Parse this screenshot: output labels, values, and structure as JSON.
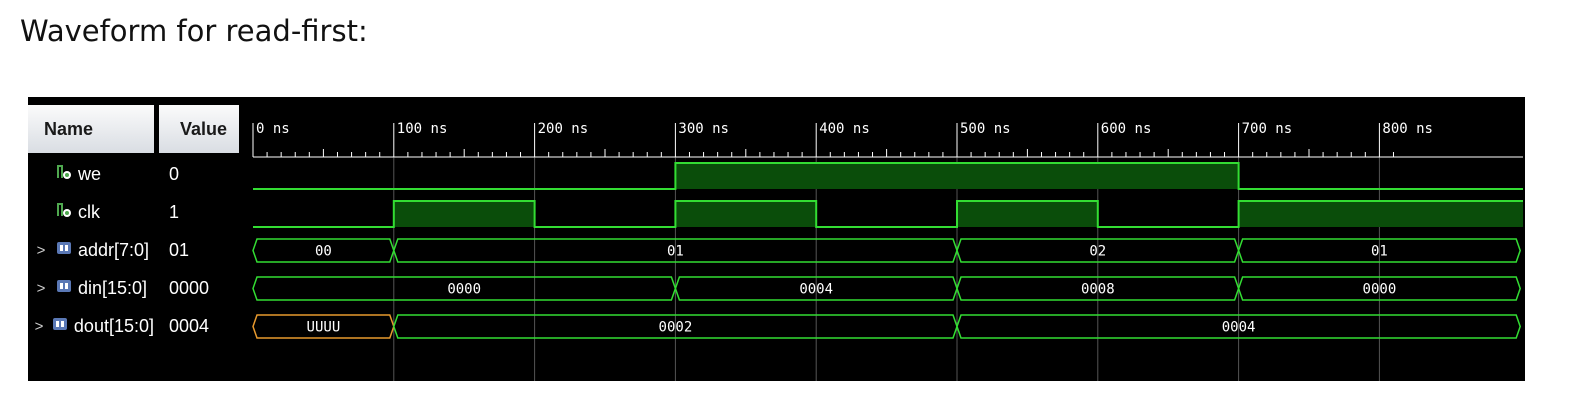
{
  "caption": "Waveform for read-first:",
  "columns": {
    "name": "Name",
    "value": "Value"
  },
  "time_axis": {
    "unit": "ns",
    "labels": [
      "0 ns",
      "100 ns",
      "200 ns",
      "300 ns",
      "400 ns",
      "500 ns",
      "600 ns",
      "700 ns",
      "800 ns"
    ],
    "values": [
      0,
      100,
      200,
      300,
      400,
      500,
      600,
      700,
      800
    ],
    "visible_end": 810
  },
  "colors": {
    "trace": "#33dd33",
    "high_fill": "#0a4d0a",
    "undefined": "#e89a2e",
    "grid": "#555555",
    "bus_icon": "#5a78b5",
    "bit_icon": "#4fa84f"
  },
  "signals": [
    {
      "name": "we",
      "type": "bit",
      "icon": "bit-signal-icon",
      "expandable": false,
      "value": "0",
      "edges": [
        {
          "t": 0,
          "v": 0
        },
        {
          "t": 300,
          "v": 1
        },
        {
          "t": 700,
          "v": 0
        }
      ]
    },
    {
      "name": "clk",
      "type": "bit",
      "icon": "bit-signal-icon",
      "expandable": false,
      "value": "1",
      "edges": [
        {
          "t": 0,
          "v": 0
        },
        {
          "t": 100,
          "v": 1
        },
        {
          "t": 200,
          "v": 0
        },
        {
          "t": 300,
          "v": 1
        },
        {
          "t": 400,
          "v": 0
        },
        {
          "t": 500,
          "v": 1
        },
        {
          "t": 600,
          "v": 0
        },
        {
          "t": 700,
          "v": 1
        }
      ]
    },
    {
      "name": "addr[7:0]",
      "type": "bus",
      "icon": "bus-signal-icon",
      "expandable": true,
      "value": "01",
      "segments": [
        {
          "start": 0,
          "end": 100,
          "label": "00"
        },
        {
          "start": 100,
          "end": 500,
          "label": "01"
        },
        {
          "start": 500,
          "end": 700,
          "label": "02"
        },
        {
          "start": 700,
          "end": 900,
          "label": "01"
        }
      ]
    },
    {
      "name": "din[15:0]",
      "type": "bus",
      "icon": "bus-signal-icon",
      "expandable": true,
      "value": "0000",
      "segments": [
        {
          "start": 0,
          "end": 300,
          "label": "0000"
        },
        {
          "start": 300,
          "end": 500,
          "label": "0004"
        },
        {
          "start": 500,
          "end": 700,
          "label": "0008"
        },
        {
          "start": 700,
          "end": 900,
          "label": "0000"
        }
      ]
    },
    {
      "name": "dout[15:0]",
      "type": "bus",
      "icon": "bus-signal-icon",
      "expandable": true,
      "value": "0004",
      "segments": [
        {
          "start": 0,
          "end": 100,
          "label": "UUUU",
          "undefined": true
        },
        {
          "start": 100,
          "end": 500,
          "label": "0002"
        },
        {
          "start": 500,
          "end": 900,
          "label": "0004"
        }
      ]
    }
  ]
}
